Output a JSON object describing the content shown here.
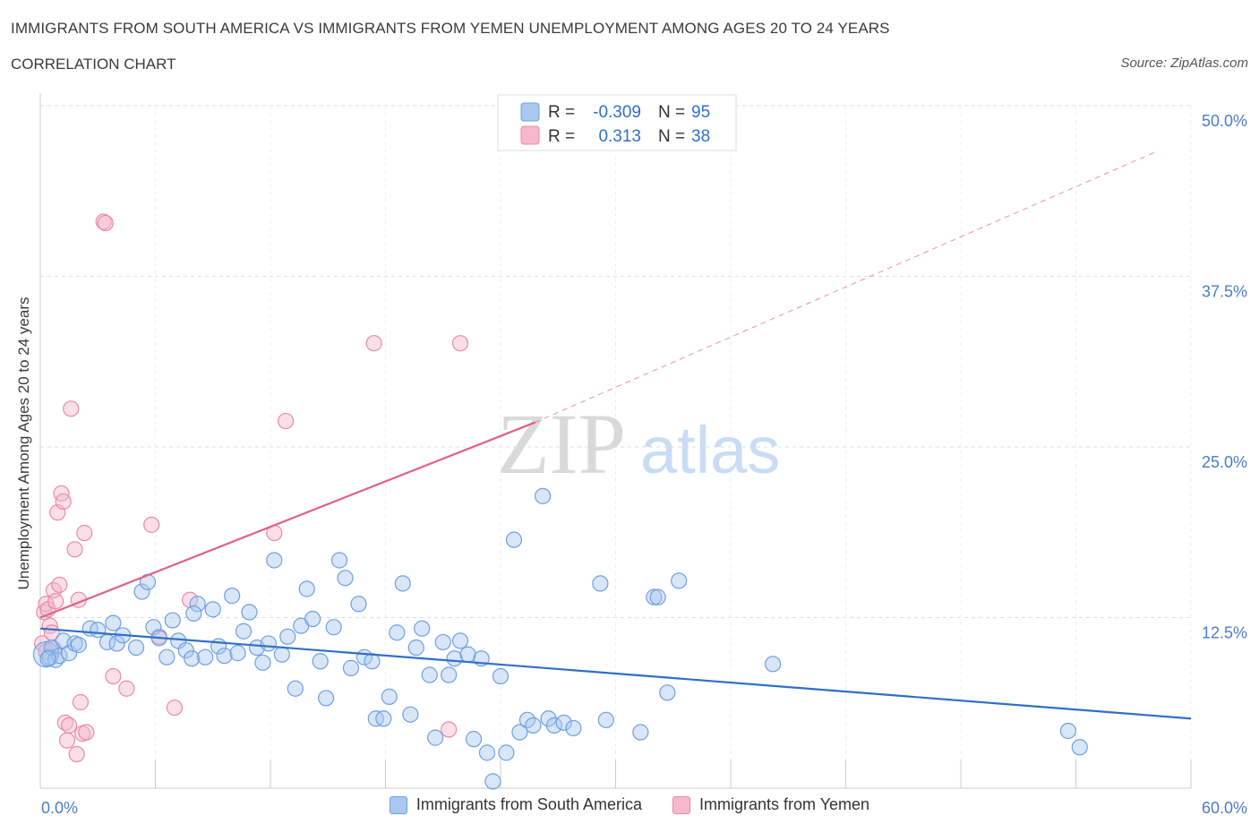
{
  "header": {
    "title": "IMMIGRANTS FROM SOUTH AMERICA VS IMMIGRANTS FROM YEMEN UNEMPLOYMENT AMONG AGES 20 TO 24 YEARS",
    "subtitle": "CORRELATION CHART",
    "source": "Source: ZipAtlas.com"
  },
  "watermark": {
    "zip": "ZIP",
    "atlas": "atlas"
  },
  "colors": {
    "blue_fill": "#a9c8f0",
    "blue_stroke": "#6e9fe0",
    "blue_line": "#2f6fc9",
    "pink_fill": "#f5b8cb",
    "pink_stroke": "#e88aa8",
    "pink_line": "#e0608c",
    "grid": "#dddddd",
    "tick_text": "#4a7cc9"
  },
  "legend_top": {
    "rows": [
      {
        "r_label": "R =",
        "r_value": "-0.309",
        "n_label": "N =",
        "n_value": "95",
        "series": "south_america"
      },
      {
        "r_label": "R =",
        "r_value": "0.313",
        "n_label": "N =",
        "n_value": "38",
        "series": "yemen"
      }
    ]
  },
  "legend_bottom": [
    {
      "label": "Immigrants from South America",
      "series": "south_america"
    },
    {
      "label": "Immigrants from Yemen",
      "series": "yemen"
    }
  ],
  "chart_data": {
    "type": "scatter",
    "title": "IMMIGRANTS FROM SOUTH AMERICA VS IMMIGRANTS FROM YEMEN UNEMPLOYMENT AMONG AGES 20 TO 24 YEARS",
    "xlabel": "",
    "ylabel": "Unemployment Among Ages 20 to 24 years",
    "xlim": [
      0,
      60
    ],
    "ylim": [
      0,
      50
    ],
    "x_tick_labels": [
      "0.0%",
      "60.0%"
    ],
    "y_ticks": [
      12.5,
      25.0,
      37.5,
      50.0
    ],
    "y_tick_labels": [
      "12.5%",
      "25.0%",
      "37.5%",
      "50.0%"
    ],
    "grid": true,
    "legend_position": "top-center",
    "series": [
      {
        "name": "Immigrants from South America",
        "key": "south_america",
        "r": -0.309,
        "n": 95,
        "trend": {
          "x": [
            0,
            60
          ],
          "y": [
            11.7,
            5.1
          ]
        },
        "points": [
          [
            0.3,
            9.8
          ],
          [
            0.5,
            9.6
          ],
          [
            0.6,
            10.3
          ],
          [
            0.8,
            9.4
          ],
          [
            1.0,
            9.7
          ],
          [
            1.2,
            10.8
          ],
          [
            1.5,
            9.9
          ],
          [
            1.8,
            10.6
          ],
          [
            2.0,
            10.5
          ],
          [
            2.6,
            11.7
          ],
          [
            3.0,
            11.6
          ],
          [
            3.5,
            10.7
          ],
          [
            4.0,
            10.6
          ],
          [
            4.3,
            11.2
          ],
          [
            5.0,
            10.3
          ],
          [
            5.3,
            14.4
          ],
          [
            5.6,
            15.1
          ],
          [
            5.9,
            11.8
          ],
          [
            6.2,
            11.0
          ],
          [
            6.6,
            9.6
          ],
          [
            6.9,
            12.3
          ],
          [
            7.2,
            10.8
          ],
          [
            7.6,
            10.1
          ],
          [
            7.9,
            9.5
          ],
          [
            8.2,
            13.5
          ],
          [
            8.6,
            9.6
          ],
          [
            9.0,
            13.1
          ],
          [
            9.3,
            10.4
          ],
          [
            9.6,
            9.7
          ],
          [
            10.0,
            14.1
          ],
          [
            10.3,
            9.9
          ],
          [
            10.6,
            11.5
          ],
          [
            10.9,
            12.9
          ],
          [
            11.3,
            10.3
          ],
          [
            11.6,
            9.2
          ],
          [
            11.9,
            10.6
          ],
          [
            12.2,
            16.7
          ],
          [
            12.6,
            9.8
          ],
          [
            12.9,
            11.1
          ],
          [
            13.3,
            7.3
          ],
          [
            13.6,
            11.9
          ],
          [
            13.9,
            14.6
          ],
          [
            14.2,
            12.4
          ],
          [
            14.6,
            9.3
          ],
          [
            14.9,
            6.6
          ],
          [
            15.3,
            11.8
          ],
          [
            15.6,
            16.7
          ],
          [
            15.9,
            15.4
          ],
          [
            16.2,
            8.8
          ],
          [
            16.6,
            13.5
          ],
          [
            16.9,
            9.6
          ],
          [
            17.3,
            9.3
          ],
          [
            17.5,
            5.1
          ],
          [
            17.9,
            5.1
          ],
          [
            18.2,
            6.7
          ],
          [
            18.6,
            11.4
          ],
          [
            18.9,
            15.0
          ],
          [
            19.3,
            5.4
          ],
          [
            19.6,
            10.3
          ],
          [
            19.9,
            11.7
          ],
          [
            20.3,
            8.3
          ],
          [
            20.6,
            3.7
          ],
          [
            21.0,
            10.7
          ],
          [
            21.3,
            8.3
          ],
          [
            21.6,
            9.5
          ],
          [
            21.9,
            10.8
          ],
          [
            22.3,
            9.8
          ],
          [
            22.6,
            3.6
          ],
          [
            23.0,
            9.5
          ],
          [
            23.3,
            2.6
          ],
          [
            23.6,
            0.5
          ],
          [
            24.0,
            8.2
          ],
          [
            24.3,
            2.6
          ],
          [
            24.7,
            18.2
          ],
          [
            25.0,
            4.1
          ],
          [
            25.4,
            5.0
          ],
          [
            25.7,
            4.6
          ],
          [
            26.2,
            21.4
          ],
          [
            26.5,
            5.1
          ],
          [
            26.8,
            4.6
          ],
          [
            27.3,
            4.8
          ],
          [
            27.8,
            4.4
          ],
          [
            29.2,
            15.0
          ],
          [
            29.5,
            5.0
          ],
          [
            31.3,
            4.1
          ],
          [
            32.0,
            14.0
          ],
          [
            32.2,
            14.0
          ],
          [
            32.7,
            7.0
          ],
          [
            33.3,
            15.2
          ],
          [
            38.2,
            9.1
          ],
          [
            53.6,
            4.2
          ],
          [
            54.2,
            3.0
          ],
          [
            0.4,
            9.5
          ],
          [
            8.0,
            12.8
          ],
          [
            3.8,
            12.1
          ]
        ]
      },
      {
        "name": "Immigrants from Yemen",
        "key": "yemen",
        "r": 0.313,
        "n": 38,
        "trend": {
          "x": [
            0,
            25.8
          ],
          "y": [
            12.5,
            26.8
          ]
        },
        "trend_dashed": {
          "x": [
            25.8,
            58.3
          ],
          "y": [
            26.8,
            46.7
          ]
        },
        "points": [
          [
            0.1,
            10.6
          ],
          [
            0.2,
            12.9
          ],
          [
            0.3,
            13.5
          ],
          [
            0.4,
            13.1
          ],
          [
            0.5,
            11.9
          ],
          [
            0.6,
            11.4
          ],
          [
            0.7,
            10.2
          ],
          [
            0.7,
            14.5
          ],
          [
            0.8,
            13.7
          ],
          [
            0.9,
            20.2
          ],
          [
            1.0,
            14.9
          ],
          [
            1.1,
            21.6
          ],
          [
            1.2,
            21.0
          ],
          [
            1.3,
            4.8
          ],
          [
            1.4,
            3.5
          ],
          [
            1.5,
            4.6
          ],
          [
            1.6,
            27.8
          ],
          [
            1.8,
            17.5
          ],
          [
            1.9,
            2.5
          ],
          [
            2.0,
            13.8
          ],
          [
            2.1,
            6.3
          ],
          [
            2.2,
            4.0
          ],
          [
            2.3,
            18.7
          ],
          [
            2.4,
            4.1
          ],
          [
            3.3,
            41.5
          ],
          [
            3.4,
            41.4
          ],
          [
            3.8,
            8.2
          ],
          [
            4.5,
            7.3
          ],
          [
            5.8,
            19.3
          ],
          [
            6.2,
            11.1
          ],
          [
            7.0,
            5.9
          ],
          [
            7.8,
            13.8
          ],
          [
            12.2,
            18.7
          ],
          [
            12.8,
            26.9
          ],
          [
            17.4,
            32.6
          ],
          [
            21.3,
            4.3
          ],
          [
            21.9,
            32.6
          ],
          [
            0.3,
            10.0
          ]
        ]
      }
    ]
  }
}
